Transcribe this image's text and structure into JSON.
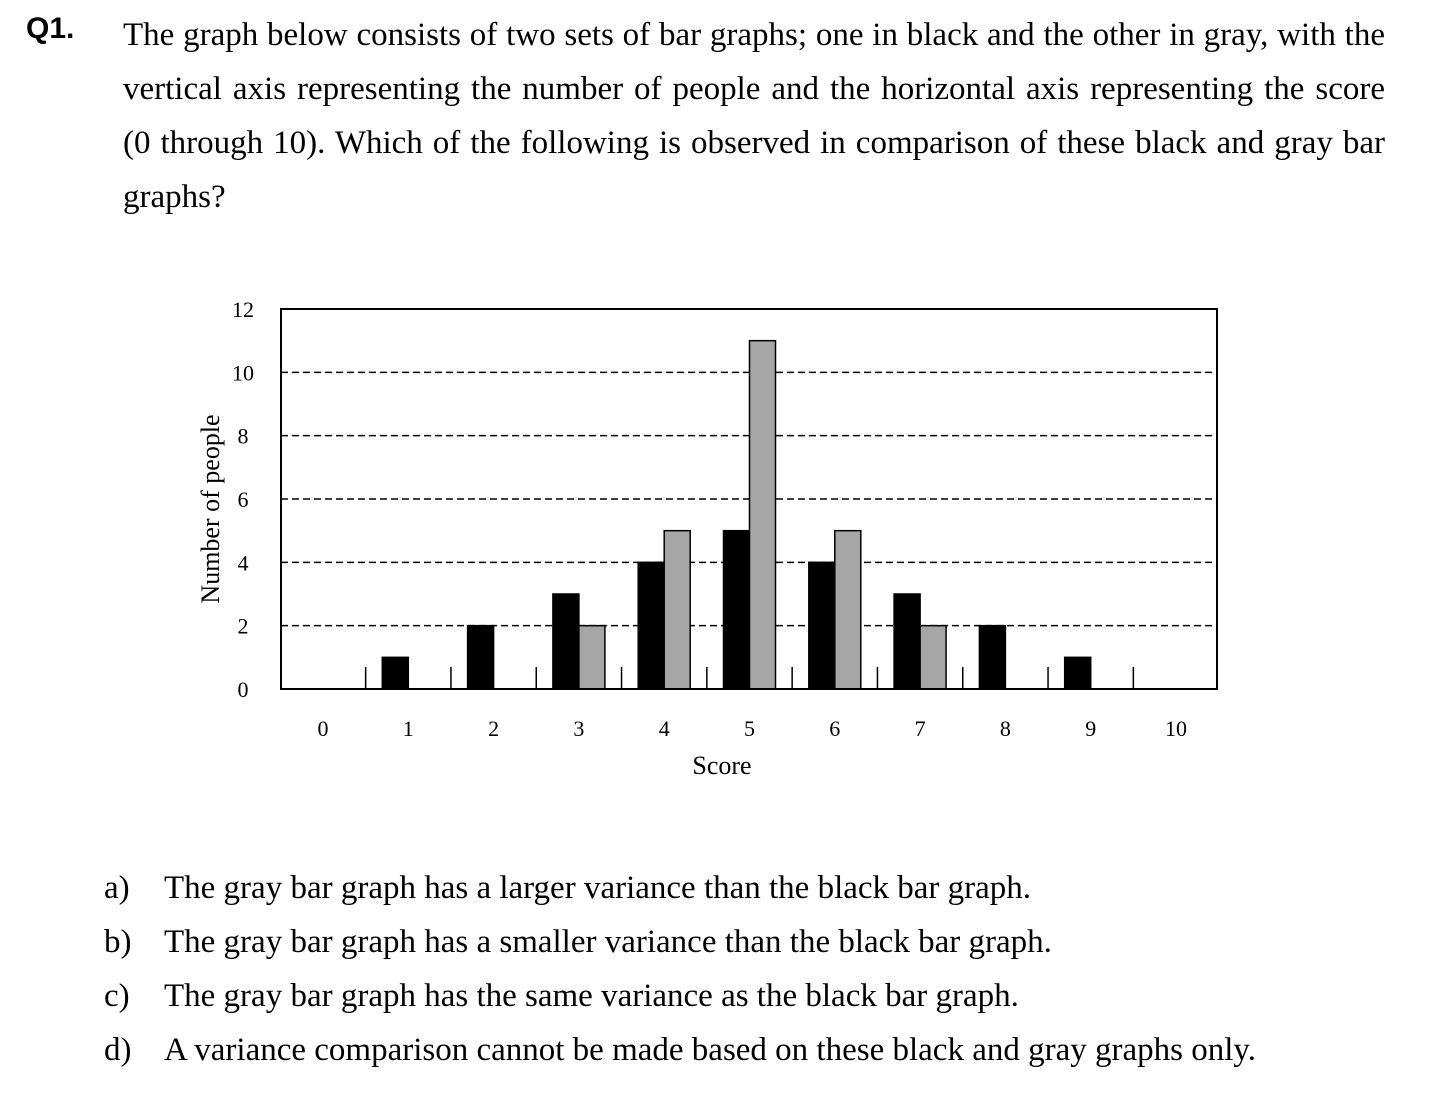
{
  "question": {
    "label": "Q1.",
    "text": "The graph below consists of two sets of bar graphs; one in black and the other in gray, with the vertical axis representing the number of people and the horizontal axis representing the score (0 through 10).   Which of the following is observed in comparison of these black and gray bar graphs?"
  },
  "chart_data": {
    "type": "bar",
    "xlabel": "Score",
    "ylabel": "Number of people",
    "categories": [
      "0",
      "1",
      "2",
      "3",
      "4",
      "5",
      "6",
      "7",
      "8",
      "9",
      "10"
    ],
    "yticks": [
      "0",
      "2",
      "4",
      "6",
      "8",
      "10",
      "12"
    ],
    "ylim": [
      0,
      12
    ],
    "grid": "horizontal dashed",
    "legend": "none",
    "series": [
      {
        "color": "#000000",
        "values": [
          0,
          1,
          2,
          3,
          4,
          5,
          4,
          3,
          2,
          1,
          0
        ]
      },
      {
        "color": "#a6a6a6",
        "values": [
          0,
          0,
          0,
          2,
          5,
          11,
          5,
          2,
          0,
          0,
          0
        ]
      }
    ]
  },
  "answers": [
    {
      "letter": "a)",
      "text": "The gray bar graph has a larger variance than the black bar graph."
    },
    {
      "letter": "b)",
      "text": "The gray bar graph has a smaller variance than the black bar graph."
    },
    {
      "letter": "c)",
      "text": "The gray bar graph has the same variance as the black bar graph."
    },
    {
      "letter": "d)",
      "text": "A variance comparison cannot be made based on these black and gray graphs only."
    }
  ]
}
